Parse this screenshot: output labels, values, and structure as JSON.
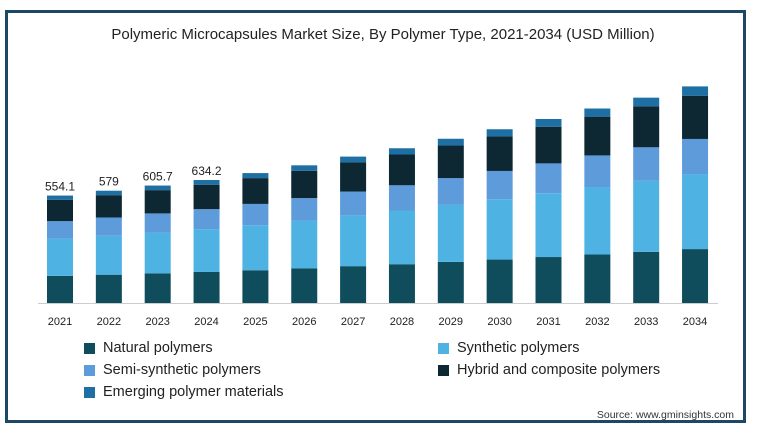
{
  "chart_data": {
    "type": "bar",
    "stacked": true,
    "title": "Polymeric Microcapsules Market Size, By Polymer Type, 2021-2034 (USD Million)",
    "xlabel": "",
    "ylabel": "",
    "grid": false,
    "legend_position": "bottom",
    "ylim": [
      0,
      1150
    ],
    "categories": [
      "2021",
      "2022",
      "2023",
      "2024",
      "2025",
      "2026",
      "2027",
      "2028",
      "2029",
      "2030",
      "2031",
      "2032",
      "2033",
      "2034"
    ],
    "series": [
      {
        "name": "Natural polymers",
        "color": "#0f4c5c",
        "values": [
          140,
          146,
          153,
          160,
          169,
          179,
          190,
          200,
          212,
          224,
          237,
          250,
          264,
          278
        ]
      },
      {
        "name": "Synthetic polymers",
        "color": "#4eb3e3",
        "values": [
          192,
          201,
          210,
          220,
          232,
          246,
          262,
          277,
          294,
          311,
          329,
          348,
          367,
          387
        ]
      },
      {
        "name": "Semi-synthetic polymers",
        "color": "#5e9bdb",
        "values": [
          90,
          94,
          99,
          104,
          110,
          116,
          123,
          130,
          138,
          146,
          154,
          163,
          172,
          181
        ]
      },
      {
        "name": "Hybrid and composite polymers",
        "color": "#0d2733",
        "values": [
          110,
          115,
          120,
          126,
          133,
          141,
          150,
          159,
          168,
          178,
          189,
          200,
          211,
          223
        ]
      },
      {
        "name": "Emerging polymer materials",
        "color": "#1e6fa3",
        "values": [
          22.1,
          23,
          23.7,
          24.2,
          26,
          28,
          30,
          32,
          35,
          37,
          40,
          42,
          45,
          48
        ]
      }
    ],
    "data_labels": [
      {
        "category": "2021",
        "text": "554.1"
      },
      {
        "category": "2022",
        "text": "579"
      },
      {
        "category": "2023",
        "text": "605.7"
      },
      {
        "category": "2024",
        "text": "634.2"
      }
    ]
  },
  "legend": [
    {
      "label": "Natural polymers",
      "color": "#0f4c5c"
    },
    {
      "label": "Synthetic polymers",
      "color": "#4eb3e3"
    },
    {
      "label": "Semi-synthetic polymers",
      "color": "#5e9bdb"
    },
    {
      "label": "Hybrid and composite polymers",
      "color": "#0d2733"
    },
    {
      "label": "Emerging polymer materials",
      "color": "#1e6fa3"
    }
  ],
  "source": "Source: www.gminsights.com"
}
